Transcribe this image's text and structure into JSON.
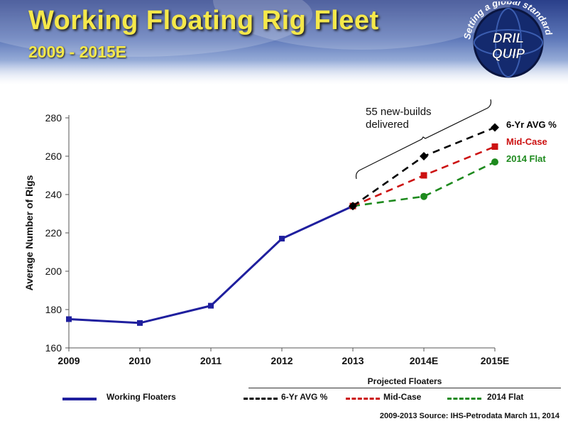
{
  "header": {
    "title": "Working Floating Rig Fleet",
    "subtitle": "2009 - 2015E"
  },
  "logo": {
    "text_top": "DRIL",
    "text_bottom": "QUIP",
    "tagline": "Setting a global standard",
    "icon": "globe-icon"
  },
  "colors": {
    "working": "#1f1f9e",
    "avg": "#000000",
    "mid": "#cc1111",
    "flat": "#1e8a1e",
    "title": "#f5e84a"
  },
  "chart_data": {
    "type": "line",
    "title": "",
    "xlabel": "",
    "ylabel": "Average Number of Rigs",
    "categories": [
      "2009",
      "2010",
      "2011",
      "2012",
      "2013",
      "2014E",
      "2015E"
    ],
    "ylim": [
      160,
      280
    ],
    "yticks": [
      160,
      180,
      200,
      220,
      240,
      260,
      280
    ],
    "grid": false,
    "series": [
      {
        "name": "Working Floaters",
        "values": [
          175,
          173,
          182,
          217,
          234,
          null,
          null
        ],
        "style": "solid",
        "marker": "square",
        "color": "#1f1f9e"
      },
      {
        "name": "6-Yr AVG %",
        "values": [
          null,
          null,
          null,
          null,
          234,
          260,
          275
        ],
        "style": "dashed",
        "marker": "diamond",
        "color": "#000000"
      },
      {
        "name": "Mid-Case",
        "values": [
          null,
          null,
          null,
          null,
          234,
          250,
          265
        ],
        "style": "dashed",
        "marker": "square",
        "color": "#cc1111"
      },
      {
        "name": "2014 Flat",
        "values": [
          null,
          null,
          null,
          null,
          234,
          239,
          257
        ],
        "style": "dashed",
        "marker": "circle",
        "color": "#1e8a1e"
      }
    ],
    "annotation": {
      "text_line1": "55 new-builds",
      "text_line2": "delivered"
    },
    "end_labels": [
      "6-Yr AVG %",
      "Mid-Case",
      "2014 Flat"
    ]
  },
  "legend": {
    "projected_title": "Projected Floaters",
    "items": [
      {
        "label": "Working Floaters"
      },
      {
        "label": "6-Yr AVG %"
      },
      {
        "label": "Mid-Case"
      },
      {
        "label": "2014 Flat"
      }
    ]
  },
  "source": "2009-2013 Source: IHS-Petrodata March 11, 2014"
}
